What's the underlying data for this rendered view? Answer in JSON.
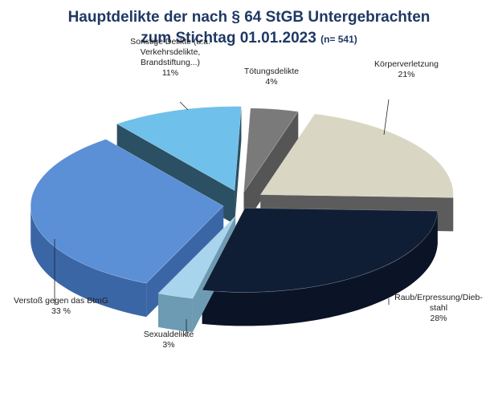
{
  "chart_data": {
    "type": "pie",
    "title_line1": "Hauptdelikte der nach § 64 StGB Untergebrachten",
    "title_line2": "zum Stichtag 01.01.2023",
    "title_n": "(n= 541)",
    "slices": [
      {
        "name": "Tötungsdelikte",
        "value": 4,
        "pct_label": "4%",
        "color": "#7a7a7a",
        "side": "#555555"
      },
      {
        "name": "Körperverletzung",
        "value": 21,
        "pct_label": "21%",
        "color": "#d9d6c4",
        "side": "#5c5c5c"
      },
      {
        "name": "Raub/Erpressung/Dieb-\nstahl",
        "value": 28,
        "pct_label": "28%",
        "color": "#0f1d35",
        "side": "#0a1426"
      },
      {
        "name": "Sexualdelikte",
        "value": 3,
        "pct_label": "3%",
        "color": "#a8d4ee",
        "side": "#6c9bb3"
      },
      {
        "name": "Verstoß gegen das BtmG",
        "value": 33,
        "pct_label": "33 %",
        "color": "#5b8fd6",
        "side": "#3b66a6"
      },
      {
        "name": "Sonstige Delikte (u.a.\nVerkehrsdelikte,\nBrandstiftung...)",
        "value": 11,
        "pct_label": "11%",
        "color": "#6fc0ea",
        "side": "#2b4f63"
      }
    ]
  }
}
